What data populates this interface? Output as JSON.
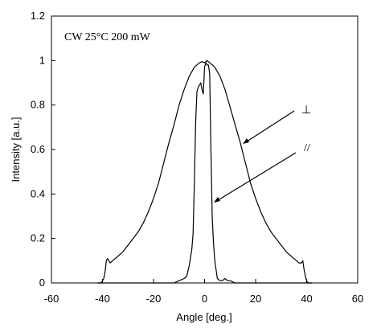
{
  "chart_data": {
    "type": "line",
    "title": "",
    "annotation": "CW 25°C 200 mW",
    "xlabel": "Angle [deg.]",
    "ylabel": "Intensity [a.u.]",
    "xlim": [
      -60,
      60
    ],
    "ylim": [
      0,
      1.2
    ],
    "x_ticks": [
      "-60",
      "-40",
      "-20",
      "0",
      "20",
      "40",
      "60"
    ],
    "y_ticks": [
      "0",
      "0.2",
      "0.4",
      "0.6",
      "0.8",
      "1",
      "1.2"
    ],
    "grid": false,
    "series": [
      {
        "name": "⊥",
        "x": [
          -42,
          -40.5,
          -39.5,
          -39,
          -38.5,
          -38,
          -37,
          -36,
          -34,
          -32,
          -30,
          -28,
          -26,
          -24,
          -22,
          -20,
          -18,
          -16,
          -14,
          -12,
          -10,
          -8,
          -6,
          -4,
          -2,
          -1,
          0,
          1,
          2,
          4,
          6,
          8,
          10,
          12,
          14,
          16,
          18,
          20,
          22,
          24,
          26,
          28,
          30,
          32,
          34,
          36,
          37,
          38,
          38.5,
          39,
          39.5,
          40,
          40.5,
          42
        ],
        "y": [
          0,
          0,
          0.02,
          0.05,
          0.1,
          0.11,
          0.09,
          0.1,
          0.12,
          0.14,
          0.17,
          0.2,
          0.23,
          0.27,
          0.32,
          0.38,
          0.45,
          0.54,
          0.63,
          0.71,
          0.8,
          0.87,
          0.93,
          0.97,
          0.99,
          0.995,
          0.99,
          1.0,
          0.99,
          0.97,
          0.93,
          0.87,
          0.79,
          0.71,
          0.63,
          0.54,
          0.45,
          0.38,
          0.32,
          0.27,
          0.23,
          0.2,
          0.17,
          0.14,
          0.12,
          0.1,
          0.09,
          0.09,
          0.1,
          0.06,
          0.03,
          0.01,
          0,
          0
        ]
      },
      {
        "name": "//",
        "x": [
          -42,
          -20,
          -12,
          -10,
          -8,
          -7,
          -6,
          -5,
          -4.5,
          -4,
          -3.5,
          -3,
          -2.5,
          -2,
          -1.5,
          -1,
          -0.5,
          0,
          0.5,
          1,
          1.5,
          2,
          2.5,
          3,
          3.5,
          4,
          4.5,
          5,
          6,
          7,
          8,
          9,
          10,
          12,
          20,
          42
        ],
        "y": [
          0,
          0,
          0,
          0.01,
          0.02,
          0.03,
          0.08,
          0.15,
          0.22,
          0.45,
          0.72,
          0.86,
          0.88,
          0.89,
          0.9,
          0.87,
          0.85,
          0.97,
          0.99,
          0.98,
          0.98,
          0.94,
          0.6,
          0.3,
          0.18,
          0.1,
          0.06,
          0.02,
          0.01,
          0.01,
          0.02,
          0.01,
          0.01,
          0,
          0,
          0
        ]
      }
    ],
    "labels": [
      "⊥",
      "//"
    ]
  }
}
